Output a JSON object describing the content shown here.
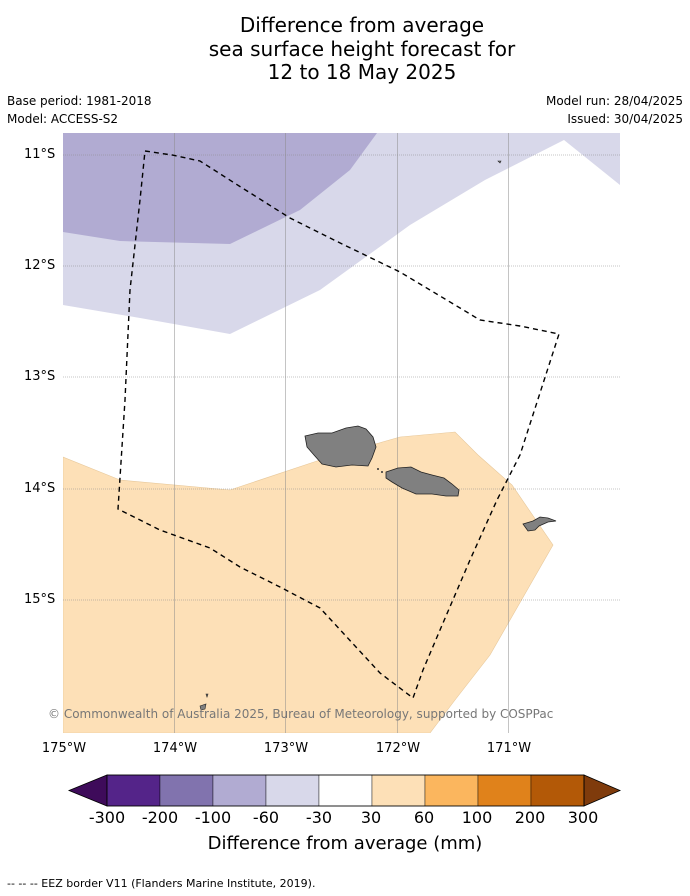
{
  "title": {
    "line1": "Difference from average",
    "line2": "sea surface height forecast for",
    "line3": "12 to 18 May 2025"
  },
  "meta": {
    "base_period": "Base period: 1981-2018",
    "model": "Model: ACCESS-S2",
    "model_run": "Model run: 28/04/2025",
    "issued": "Issued: 30/04/2025"
  },
  "map": {
    "lat_labels": [
      "11°S",
      "12°S",
      "13°S",
      "14°S",
      "15°S"
    ],
    "lon_labels": [
      "175°W",
      "174°W",
      "173°W",
      "172°W",
      "171°W"
    ],
    "copyright": "© Commonwealth of Australia 2025, Bureau of Meteorology, supported by COSPPac",
    "colors": {
      "land": "#808080",
      "anom_neg_100_60": "#b1abd2",
      "anom_neg_60_30": "#d8d8ea",
      "anom_30_60": "#fde0b7",
      "eez_line": "#000000"
    }
  },
  "colorbar": {
    "ticks": [
      "-300",
      "-200",
      "-100",
      "-60",
      "-30",
      "30",
      "60",
      "100",
      "200",
      "300"
    ],
    "colors": [
      "#3e0b5a",
      "#542489",
      "#8173ae",
      "#b1abd2",
      "#d8d8ea",
      "#ffffff",
      "#fde0b7",
      "#fbb65e",
      "#e0821b",
      "#b35907",
      "#7f3b0c"
    ],
    "label": "Difference from average (mm)"
  },
  "footnote": "--  --  -- EEZ border V11 (Flanders Marine Institute, 2019)."
}
